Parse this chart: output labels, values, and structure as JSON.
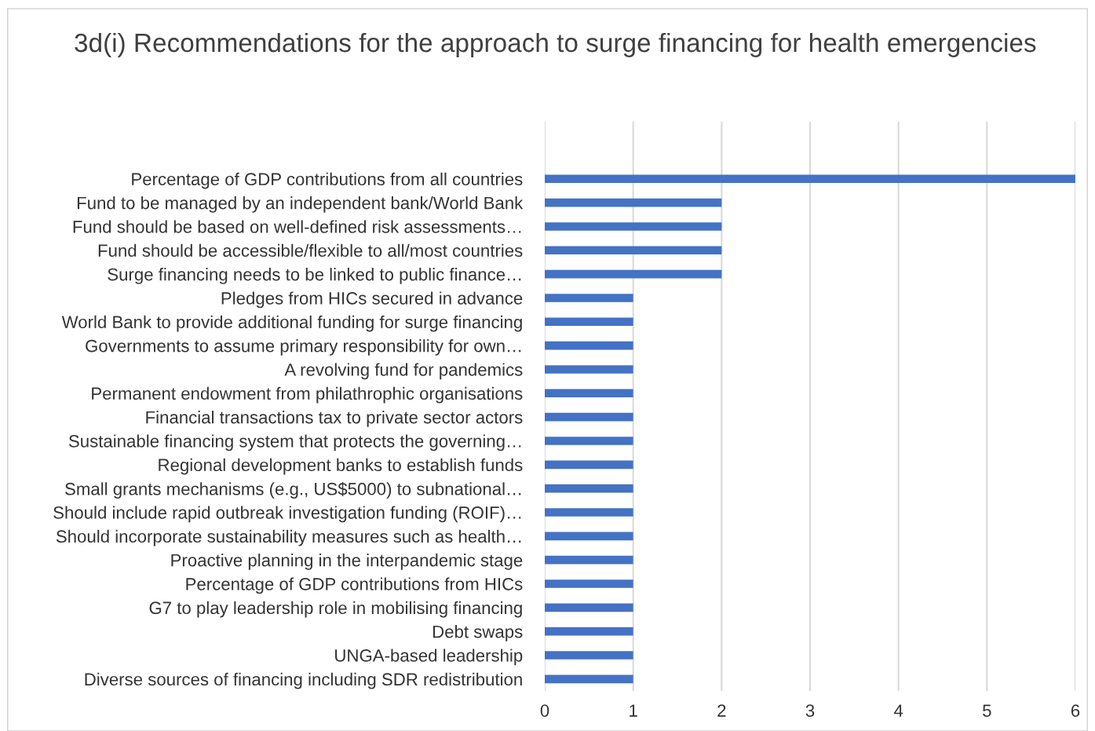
{
  "chart_data": {
    "type": "bar",
    "orientation": "horizontal",
    "title": "3d(i) Recommendations for the approach to surge financing for health emergencies",
    "categories": [
      "Percentage of GDP contributions from all countries",
      "Fund to be managed by an independent bank/World Bank",
      "Fund should be based on well-defined risk assessments…",
      "Fund should be accessible/flexible to all/most countries",
      "Surge financing needs to be linked to public finance…",
      "Pledges from HICs secured in advance",
      "World Bank to provide additional funding for surge financing",
      "Governments to assume primary responsibility for own…",
      "A revolving fund for pandemics",
      "Permanent endowment from philathrophic organisations",
      "Financial transactions tax to private sector actors",
      "Sustainable financing system that protects the governing…",
      "Regional development banks to establish funds",
      "Small grants mechanisms (e.g., US$5000) to subnational…",
      "Should include rapid outbreak investigation funding (ROIF)…",
      "Should incorporate sustainability measures such as health…",
      "Proactive planning in the interpandemic stage",
      "Percentage of GDP contributions from HICs",
      "G7 to play leadership role in mobilising financing",
      "Debt swaps",
      "UNGA-based leadership",
      "Diverse sources of financing including SDR redistribution"
    ],
    "values": [
      6,
      2,
      2,
      2,
      2,
      1,
      1,
      1,
      1,
      1,
      1,
      1,
      1,
      1,
      1,
      1,
      1,
      1,
      1,
      1,
      1,
      1
    ],
    "color": "#4472c4",
    "xlim": [
      0,
      6
    ],
    "xticks": [
      0,
      1,
      2,
      3,
      4,
      5,
      6
    ],
    "grid": "x",
    "legend": false
  }
}
